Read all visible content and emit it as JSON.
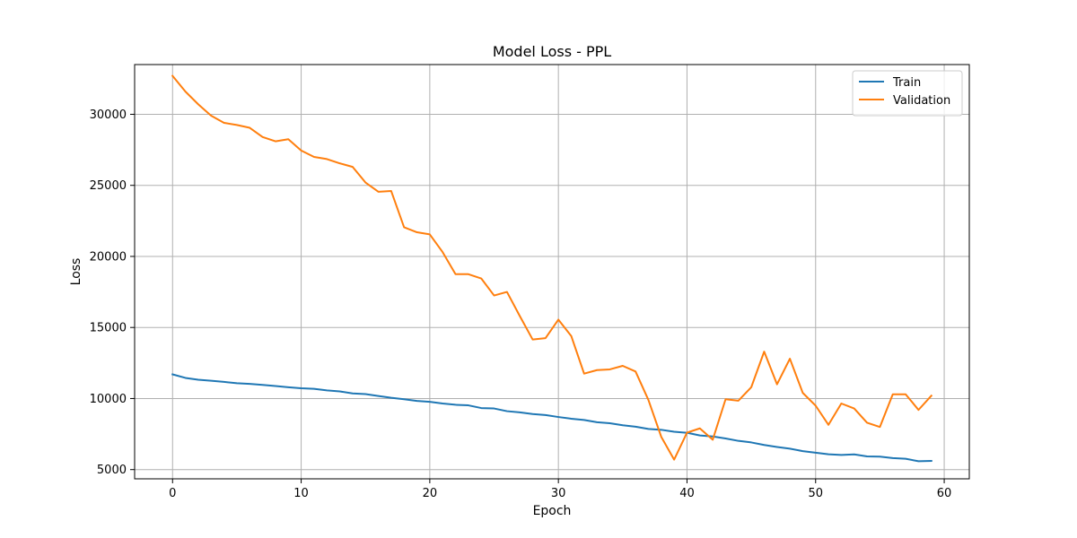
{
  "chart_data": {
    "type": "line",
    "title": "Model Loss - PPL",
    "xlabel": "Epoch",
    "ylabel": "Loss",
    "xlim": [
      -2.95,
      61.95
    ],
    "ylim": [
      4350,
      33500
    ],
    "xticks": [
      0,
      10,
      20,
      30,
      40,
      50,
      60
    ],
    "yticks": [
      5000,
      10000,
      15000,
      20000,
      25000,
      30000
    ],
    "grid": true,
    "legend_position": "top-right",
    "x": [
      0,
      1,
      2,
      3,
      4,
      5,
      6,
      7,
      8,
      9,
      10,
      11,
      12,
      13,
      14,
      15,
      16,
      17,
      18,
      19,
      20,
      21,
      22,
      23,
      24,
      25,
      26,
      27,
      28,
      29,
      30,
      31,
      32,
      33,
      34,
      35,
      36,
      37,
      38,
      39,
      40,
      41,
      42,
      43,
      44,
      45,
      46,
      47,
      48,
      49,
      50,
      51,
      52,
      53,
      54,
      55,
      56,
      57,
      58,
      59
    ],
    "series": [
      {
        "name": "Train",
        "color": "#1f77b4",
        "values": [
          11700,
          11450,
          11320,
          11250,
          11170,
          11080,
          11030,
          10960,
          10880,
          10790,
          10720,
          10680,
          10570,
          10500,
          10360,
          10310,
          10180,
          10050,
          9950,
          9830,
          9770,
          9650,
          9560,
          9520,
          9330,
          9300,
          9110,
          9030,
          8910,
          8840,
          8700,
          8580,
          8490,
          8330,
          8260,
          8120,
          8020,
          7860,
          7800,
          7660,
          7590,
          7400,
          7330,
          7190,
          7020,
          6910,
          6730,
          6590,
          6470,
          6300,
          6190,
          6080,
          6030,
          6070,
          5930,
          5910,
          5810,
          5760,
          5590,
          5610
        ]
      },
      {
        "name": "Validation",
        "color": "#ff7f0e",
        "values": [
          32700,
          31600,
          30700,
          29900,
          29400,
          29250,
          29050,
          28400,
          28100,
          28250,
          27450,
          27000,
          26850,
          26550,
          26300,
          25200,
          24550,
          24600,
          22050,
          21700,
          21550,
          20300,
          18750,
          18750,
          18450,
          17250,
          17500,
          15800,
          14150,
          14250,
          15550,
          14400,
          11750,
          12000,
          12050,
          12300,
          11900,
          9900,
          7300,
          5700,
          7600,
          7900,
          7100,
          9950,
          9850,
          10800,
          13300,
          11000,
          12800,
          10400,
          9500,
          8150,
          9650,
          9300,
          8300,
          8000,
          10300,
          10300,
          9200,
          10200
        ]
      }
    ]
  }
}
